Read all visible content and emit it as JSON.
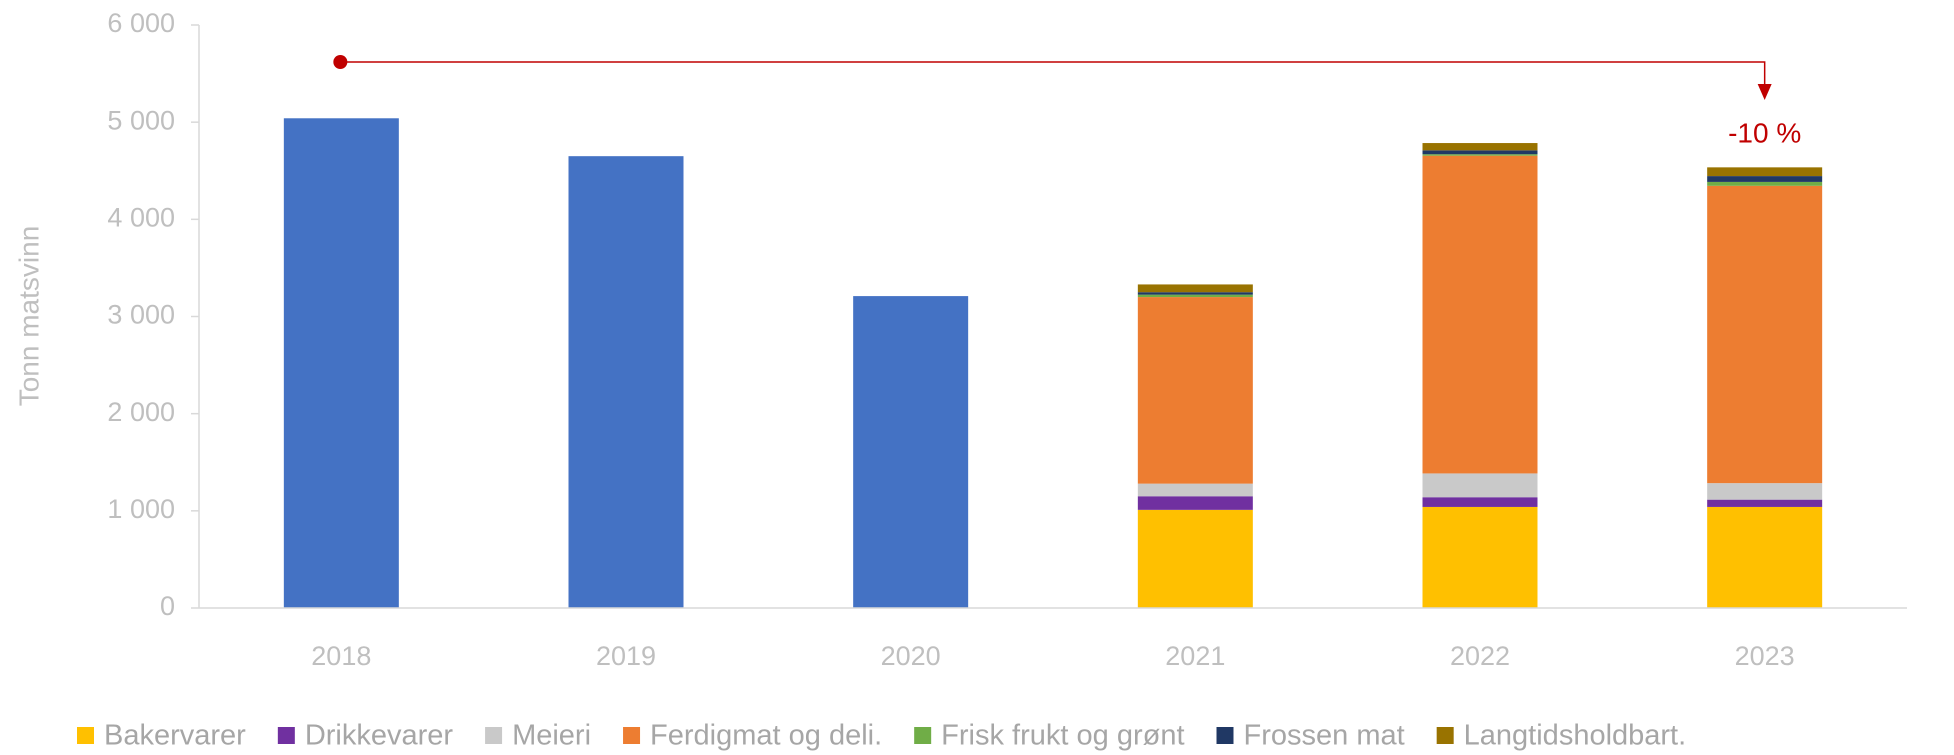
{
  "chart_data": {
    "type": "stacked_bar",
    "categories": [
      "2018",
      "2019",
      "2020",
      "2021",
      "2022",
      "2023"
    ],
    "y_label": "Tonn matsvinn",
    "ylim": [
      0,
      6000
    ],
    "yticks": [
      0,
      {
        "value": 1000,
        "label": "1 000"
      },
      {
        "value": 2000,
        "label": "2 000"
      },
      {
        "value": 3000,
        "label": "3 000"
      },
      {
        "value": 4000,
        "label": "4 000"
      },
      {
        "value": 5000,
        "label": "5 000"
      },
      {
        "value": 6000,
        "label": "6 000"
      }
    ],
    "annotation": "-10 %",
    "annotation_color": "#c00000",
    "series": [
      {
        "color": "#4472c4",
        "values": [
          5040,
          4650,
          3210,
          null,
          null,
          null
        ]
      },
      {
        "name": "Bakervarer",
        "color": "#ffc000",
        "values": [
          null,
          null,
          null,
          1010,
          1040,
          1040
        ]
      },
      {
        "name": "Drikkevarer",
        "color": "#7030a0",
        "values": [
          null,
          null,
          null,
          140,
          100,
          75
        ]
      },
      {
        "name": "Meieri",
        "color": "#c9c9c9",
        "values": [
          null,
          null,
          null,
          130,
          245,
          170
        ]
      },
      {
        "name": "Ferdigmat og deli.",
        "color": "#ed7d31",
        "values": [
          null,
          null,
          null,
          1920,
          3270,
          3060
        ]
      },
      {
        "name": "Frisk frukt og grønt",
        "color": "#70ad47",
        "values": [
          null,
          null,
          null,
          25,
          15,
          40
        ]
      },
      {
        "name": "Frossen mat",
        "color": "#203864",
        "values": [
          null,
          null,
          null,
          25,
          40,
          60
        ]
      },
      {
        "name": "Langtidsholdbart.",
        "color": "#997300",
        "values": [
          null,
          null,
          null,
          80,
          75,
          90
        ]
      }
    ]
  }
}
